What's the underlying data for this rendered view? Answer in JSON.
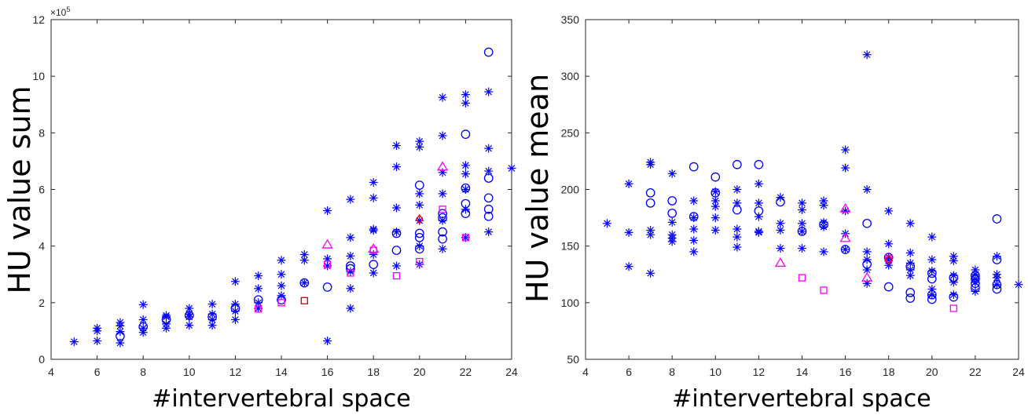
{
  "chart_data": [
    {
      "type": "scatter",
      "xlabel": "#intervertebral space",
      "ylabel": "HU value sum",
      "exponent_label": "×10",
      "exponent_power": "5",
      "xlim": [
        4,
        24
      ],
      "ylim": [
        0,
        12
      ],
      "xticks": [
        "4",
        "6",
        "8",
        "10",
        "12",
        "14",
        "16",
        "18",
        "20",
        "22",
        "24"
      ],
      "yticks": [
        "0",
        "2",
        "4",
        "6",
        "8",
        "10",
        "12"
      ],
      "series": [
        {
          "marker": "star",
          "color": "#0000ff",
          "points": [
            [
              5,
              0.62
            ],
            [
              6,
              0.65
            ],
            [
              6,
              1.0
            ],
            [
              6,
              1.1
            ],
            [
              7,
              0.58
            ],
            [
              7,
              0.98
            ],
            [
              7,
              1.18
            ],
            [
              7,
              1.3
            ],
            [
              8,
              0.95
            ],
            [
              8,
              1.1
            ],
            [
              8,
              1.4
            ],
            [
              8,
              1.93
            ],
            [
              9,
              1.1
            ],
            [
              9,
              1.25
            ],
            [
              9,
              1.5
            ],
            [
              9,
              1.55
            ],
            [
              10,
              1.2
            ],
            [
              10,
              1.5
            ],
            [
              10,
              1.6
            ],
            [
              10,
              1.8
            ],
            [
              11,
              1.2
            ],
            [
              11,
              1.4
            ],
            [
              11,
              1.6
            ],
            [
              11,
              1.95
            ],
            [
              12,
              1.4
            ],
            [
              12,
              1.7
            ],
            [
              12,
              1.95
            ],
            [
              12,
              2.75
            ],
            [
              13,
              1.8
            ],
            [
              13,
              2.0
            ],
            [
              13,
              2.5
            ],
            [
              13,
              2.95
            ],
            [
              14,
              2.25
            ],
            [
              14,
              2.6
            ],
            [
              14,
              3.0
            ],
            [
              14,
              3.5
            ],
            [
              15,
              2.7
            ],
            [
              15,
              3.5
            ],
            [
              15,
              3.7
            ],
            [
              16,
              0.65
            ],
            [
              16,
              3.3
            ],
            [
              16,
              3.55
            ],
            [
              16,
              5.25
            ],
            [
              17,
              1.8
            ],
            [
              17,
              2.5
            ],
            [
              17,
              3.1
            ],
            [
              17,
              3.65
            ],
            [
              17,
              4.3
            ],
            [
              17,
              5.65
            ],
            [
              18,
              3.05
            ],
            [
              18,
              3.7
            ],
            [
              18,
              4.55
            ],
            [
              18,
              4.6
            ],
            [
              18,
              5.7
            ],
            [
              18,
              6.25
            ],
            [
              19,
              3.3
            ],
            [
              19,
              4.5
            ],
            [
              19,
              5.35
            ],
            [
              19,
              6.8
            ],
            [
              19,
              7.55
            ],
            [
              20,
              3.35
            ],
            [
              20,
              4.0
            ],
            [
              20,
              4.9
            ],
            [
              20,
              5.45
            ],
            [
              20,
              5.85
            ],
            [
              20,
              7.5
            ],
            [
              20,
              7.7
            ],
            [
              21,
              3.9
            ],
            [
              21,
              4.9
            ],
            [
              21,
              5.85
            ],
            [
              21,
              6.6
            ],
            [
              21,
              7.9
            ],
            [
              21,
              9.25
            ],
            [
              22,
              4.3
            ],
            [
              22,
              5.3
            ],
            [
              22,
              6.0
            ],
            [
              22,
              6.55
            ],
            [
              22,
              6.85
            ],
            [
              22,
              9.05
            ],
            [
              22,
              9.35
            ],
            [
              23,
              4.5
            ],
            [
              23,
              6.65
            ],
            [
              23,
              7.45
            ],
            [
              23,
              9.45
            ],
            [
              24,
              6.75
            ]
          ]
        },
        {
          "marker": "circle",
          "color": "#0000ff",
          "points": [
            [
              7,
              0.82
            ],
            [
              8,
              1.15
            ],
            [
              9,
              1.4
            ],
            [
              10,
              1.55
            ],
            [
              11,
              1.5
            ],
            [
              12,
              1.8
            ],
            [
              13,
              2.1
            ],
            [
              14,
              2.1
            ],
            [
              15,
              2.7
            ],
            [
              16,
              2.55
            ],
            [
              17,
              3.2
            ],
            [
              17,
              3.3
            ],
            [
              18,
              3.35
            ],
            [
              19,
              3.85
            ],
            [
              19,
              4.45
            ],
            [
              20,
              3.9
            ],
            [
              20,
              4.3
            ],
            [
              20,
              4.45
            ],
            [
              20,
              6.15
            ],
            [
              21,
              4.25
            ],
            [
              21,
              4.5
            ],
            [
              21,
              5.0
            ],
            [
              21,
              5.15
            ],
            [
              22,
              5.15
            ],
            [
              22,
              5.5
            ],
            [
              22,
              6.05
            ],
            [
              22,
              7.95
            ],
            [
              23,
              5.05
            ],
            [
              23,
              5.3
            ],
            [
              23,
              5.7
            ],
            [
              23,
              6.4
            ],
            [
              23,
              10.85
            ]
          ]
        },
        {
          "marker": "triangle",
          "color": "#ff00ff",
          "points": [
            [
              16,
              4.05
            ],
            [
              18,
              3.9
            ],
            [
              21,
              6.8
            ]
          ]
        },
        {
          "marker": "square",
          "color": "#ff00ff",
          "points": [
            [
              13,
              1.78
            ],
            [
              14,
              2.0
            ],
            [
              16,
              3.35
            ],
            [
              17,
              3.05
            ],
            [
              18,
              3.85
            ],
            [
              19,
              2.95
            ],
            [
              20,
              3.45
            ],
            [
              21,
              5.3
            ],
            [
              22,
              4.3
            ]
          ]
        },
        {
          "marker": "square",
          "color": "#cc0000",
          "points": [
            [
              15,
              2.07
            ]
          ]
        },
        {
          "marker": "diamond",
          "color": "#ff0000",
          "points": [
            [
              20,
              4.95
            ]
          ]
        }
      ]
    },
    {
      "type": "scatter",
      "xlabel": "#intervertebral space",
      "ylabel": "HU value mean",
      "xlim": [
        4,
        24
      ],
      "ylim": [
        50,
        350
      ],
      "xticks": [
        "4",
        "6",
        "8",
        "10",
        "12",
        "14",
        "16",
        "18",
        "20",
        "22",
        "24"
      ],
      "yticks": [
        "50",
        "100",
        "150",
        "200",
        "250",
        "300",
        "350"
      ],
      "series": [
        {
          "marker": "star",
          "color": "#0000ff",
          "points": [
            [
              5,
              170
            ],
            [
              6,
              205
            ],
            [
              6,
              162
            ],
            [
              6,
              132
            ],
            [
              7,
              224
            ],
            [
              7,
              222
            ],
            [
              7,
              164
            ],
            [
              7,
              160
            ],
            [
              7,
              126
            ],
            [
              8,
              214
            ],
            [
              8,
              171
            ],
            [
              8,
              160
            ],
            [
              8,
              157
            ],
            [
              8,
              154
            ],
            [
              9,
              190
            ],
            [
              9,
              175
            ],
            [
              9,
              165
            ],
            [
              9,
              155
            ],
            [
              9,
              145
            ],
            [
              10,
              198
            ],
            [
              10,
              190
            ],
            [
              10,
              185
            ],
            [
              10,
              175
            ],
            [
              10,
              164
            ],
            [
              11,
              200
            ],
            [
              11,
              188
            ],
            [
              11,
              165
            ],
            [
              11,
              158
            ],
            [
              11,
              149
            ],
            [
              12,
              205
            ],
            [
              12,
              188
            ],
            [
              12,
              176
            ],
            [
              12,
              163
            ],
            [
              12,
              162
            ],
            [
              13,
              193
            ],
            [
              13,
              170
            ],
            [
              13,
              164
            ],
            [
              13,
              148
            ],
            [
              14,
              188
            ],
            [
              14,
              182
            ],
            [
              14,
              170
            ],
            [
              14,
              163
            ],
            [
              14,
              148
            ],
            [
              15,
              190
            ],
            [
              15,
              186
            ],
            [
              15,
              171
            ],
            [
              15,
              167
            ],
            [
              15,
              145
            ],
            [
              16,
              235
            ],
            [
              16,
              219
            ],
            [
              16,
              181
            ],
            [
              16,
              161
            ],
            [
              16,
              147
            ],
            [
              17,
              319
            ],
            [
              17,
              200
            ],
            [
              17,
              145
            ],
            [
              17,
              138
            ],
            [
              17,
              129
            ],
            [
              17,
              117
            ],
            [
              18,
              181
            ],
            [
              18,
              152
            ],
            [
              18,
              140
            ],
            [
              18,
              137
            ],
            [
              18,
              133
            ],
            [
              19,
              170
            ],
            [
              19,
              144
            ],
            [
              19,
              135
            ],
            [
              19,
              129
            ],
            [
              19,
              124
            ],
            [
              20,
              158
            ],
            [
              20,
              138
            ],
            [
              20,
              128
            ],
            [
              20,
              112
            ],
            [
              20,
              107
            ],
            [
              21,
              141
            ],
            [
              21,
              137
            ],
            [
              21,
              124
            ],
            [
              21,
              118
            ],
            [
              21,
              107
            ],
            [
              22,
              129
            ],
            [
              22,
              125
            ],
            [
              22,
              121
            ],
            [
              22,
              118
            ],
            [
              22,
              110
            ],
            [
              23,
              141
            ],
            [
              23,
              125
            ],
            [
              23,
              122
            ],
            [
              23,
              116
            ],
            [
              24,
              116
            ]
          ]
        },
        {
          "marker": "circle",
          "color": "#0000ff",
          "points": [
            [
              7,
              197
            ],
            [
              7,
              188
            ],
            [
              8,
              190
            ],
            [
              8,
              179
            ],
            [
              9,
              220
            ],
            [
              9,
              176
            ],
            [
              10,
              211
            ],
            [
              10,
              197
            ],
            [
              11,
              222
            ],
            [
              11,
              182
            ],
            [
              12,
              222
            ],
            [
              12,
              181
            ],
            [
              13,
              189
            ],
            [
              14,
              163
            ],
            [
              15,
              169
            ],
            [
              16,
              147
            ],
            [
              17,
              170
            ],
            [
              17,
              134
            ],
            [
              18,
              140
            ],
            [
              18,
              114
            ],
            [
              19,
              132
            ],
            [
              19,
              109
            ],
            [
              19,
              104
            ],
            [
              20,
              126
            ],
            [
              20,
              121
            ],
            [
              20,
              107
            ],
            [
              20,
              103
            ],
            [
              21,
              122
            ],
            [
              21,
              105
            ],
            [
              22,
              124
            ],
            [
              22,
              121
            ],
            [
              22,
              117
            ],
            [
              22,
              113
            ],
            [
              23,
              174
            ],
            [
              23,
              138
            ],
            [
              23,
              116
            ],
            [
              23,
              112
            ]
          ]
        },
        {
          "marker": "triangle",
          "color": "#ff00ff",
          "points": [
            [
              13,
              135
            ],
            [
              16,
              183
            ],
            [
              16,
              157
            ],
            [
              17,
              122
            ]
          ]
        },
        {
          "marker": "square",
          "color": "#ff00ff",
          "points": [
            [
              14,
              122
            ],
            [
              15,
              111
            ],
            [
              18,
              139
            ],
            [
              21,
              95
            ]
          ]
        },
        {
          "marker": "diamond",
          "color": "#ff0000",
          "points": [
            [
              18,
              138
            ]
          ]
        }
      ]
    }
  ]
}
